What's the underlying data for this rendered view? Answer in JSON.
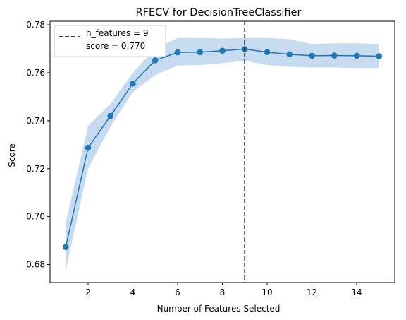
{
  "chart_data": {
    "type": "line",
    "title": "RFECV for DecisionTreeClassifier",
    "xlabel": "Number of Features Selected",
    "ylabel": "Score",
    "xlim": [
      0.3,
      15.7
    ],
    "ylim": [
      0.6725,
      0.7815
    ],
    "xticks": [
      2,
      4,
      6,
      8,
      10,
      12,
      14
    ],
    "yticks": [
      0.68,
      0.7,
      0.72,
      0.74,
      0.76,
      0.78
    ],
    "xtick_labels": [
      "2",
      "4",
      "6",
      "8",
      "10",
      "12",
      "14"
    ],
    "ytick_labels": [
      "0.68",
      "0.70",
      "0.72",
      "0.74",
      "0.76",
      "0.78"
    ],
    "grid": false,
    "legend_position": "upper-left",
    "colors": {
      "line": "#1f77b4",
      "band": "#c6dbef",
      "vline": "#000000"
    },
    "series": [
      {
        "x": [
          1,
          2,
          3,
          4,
          5,
          6,
          7,
          8,
          9,
          10,
          11,
          12,
          13,
          14,
          15
        ],
        "y": [
          0.6873,
          0.7287,
          0.742,
          0.7555,
          0.7652,
          0.7685,
          0.7686,
          0.7692,
          0.7699,
          0.7686,
          0.7677,
          0.7671,
          0.7672,
          0.7671,
          0.7669
        ],
        "lower": [
          0.6775,
          0.72,
          0.7375,
          0.752,
          0.759,
          0.763,
          0.7632,
          0.764,
          0.765,
          0.7632,
          0.7625,
          0.7622,
          0.7622,
          0.762,
          0.762
        ],
        "upper": [
          0.6975,
          0.738,
          0.747,
          0.76,
          0.77,
          0.7745,
          0.7745,
          0.7743,
          0.7745,
          0.7745,
          0.774,
          0.772,
          0.7723,
          0.7723,
          0.772
        ]
      }
    ],
    "vline": {
      "x": 9,
      "legend_lines": [
        "n_features = 9",
        "score = 0.770"
      ]
    }
  }
}
